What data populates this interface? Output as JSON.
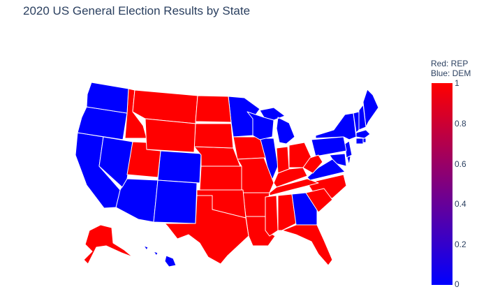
{
  "title": "2020 US General Election Results by State",
  "colorbar": {
    "title_lines": [
      "Red: REP",
      "Blue: DEM"
    ],
    "ticks": [
      "1",
      "0.8",
      "0.6",
      "0.4",
      "0.2",
      "0"
    ],
    "colors": {
      "max": "#ff0000",
      "min": "#0000ff",
      "border": "#ffffff"
    }
  },
  "chart_data": {
    "type": "choropleth",
    "scope": "usa",
    "value_meaning": "1 = REP, 0 = DEM",
    "range": [
      0,
      1
    ],
    "states": {
      "AL": 1,
      "AK": 1,
      "AZ": 0,
      "AR": 1,
      "CA": 0,
      "CO": 0,
      "CT": 0,
      "DE": 0,
      "DC": 0,
      "FL": 1,
      "GA": 0,
      "HI": 0,
      "ID": 1,
      "IL": 0,
      "IN": 1,
      "IA": 1,
      "KS": 1,
      "KY": 1,
      "LA": 1,
      "ME": 0,
      "MD": 0,
      "MA": 0,
      "MI": 0,
      "MN": 0,
      "MS": 1,
      "MO": 1,
      "MT": 1,
      "NE": 1,
      "NV": 0,
      "NH": 0,
      "NJ": 0,
      "NM": 0,
      "NY": 0,
      "NC": 1,
      "ND": 1,
      "OH": 1,
      "OK": 1,
      "OR": 0,
      "PA": 0,
      "RI": 0,
      "SC": 1,
      "SD": 1,
      "TN": 1,
      "TX": 1,
      "UT": 1,
      "VT": 0,
      "VA": 0,
      "WA": 0,
      "WV": 1,
      "WI": 0,
      "WY": 1
    }
  }
}
